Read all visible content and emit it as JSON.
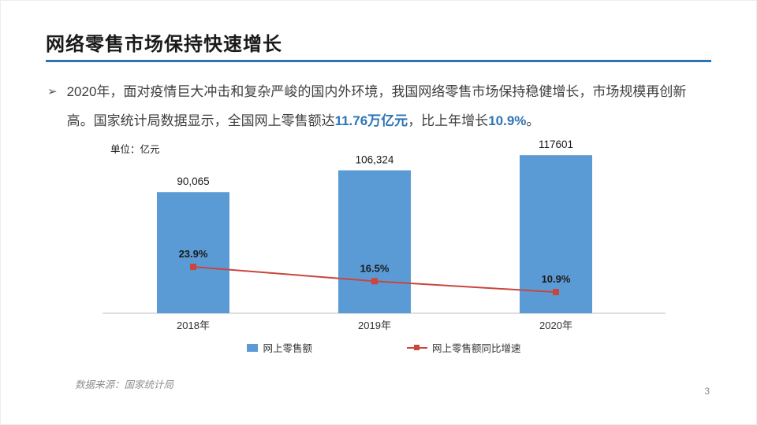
{
  "slide": {
    "title": "网络零售市场保持快速增长",
    "bullet_marker": "➢",
    "body": {
      "part1": "2020年，面对疫情巨大冲击和复杂严峻的国内外环境，我国网络零售市场保持稳健增长，市场规模再创新高。国家统计局数据显示，全国网上零售额达",
      "highlight1": "11.76万亿元",
      "part2": "，比上年增长",
      "highlight2": "10.9%",
      "part3": "。"
    },
    "source": "数据来源：国家统计局",
    "page_number": "3"
  },
  "colors": {
    "accent_blue": "#2E75B6",
    "bar_blue": "#5B9BD5",
    "line_red": "#C9453D",
    "axis_gray": "#BFBFBF",
    "text_dark": "#1a1a1a",
    "muted_gray": "#8c8c8c"
  },
  "chart_data": {
    "type": "bar",
    "combo": "bar+line",
    "unit_label": "单位：亿元",
    "categories": [
      "2018年",
      "2019年",
      "2020年"
    ],
    "series": [
      {
        "name": "网上零售额",
        "type": "bar",
        "axis": "primary",
        "values": [
          90065,
          106324,
          117601
        ],
        "labels": [
          "90,065",
          "106,324",
          "117601"
        ],
        "color": "#5B9BD5"
      },
      {
        "name": "网上零售额同比增速",
        "type": "line",
        "axis": "secondary",
        "values": [
          23.9,
          16.5,
          10.9
        ],
        "labels": [
          "23.9%",
          "16.5%",
          "10.9%"
        ],
        "color": "#C9453D"
      }
    ],
    "primary_axis": {
      "ylim": [
        0,
        130000
      ]
    },
    "secondary_axis": {
      "ylim": [
        0,
        90
      ],
      "unit": "%"
    },
    "legend_position": "bottom",
    "grid": false
  }
}
